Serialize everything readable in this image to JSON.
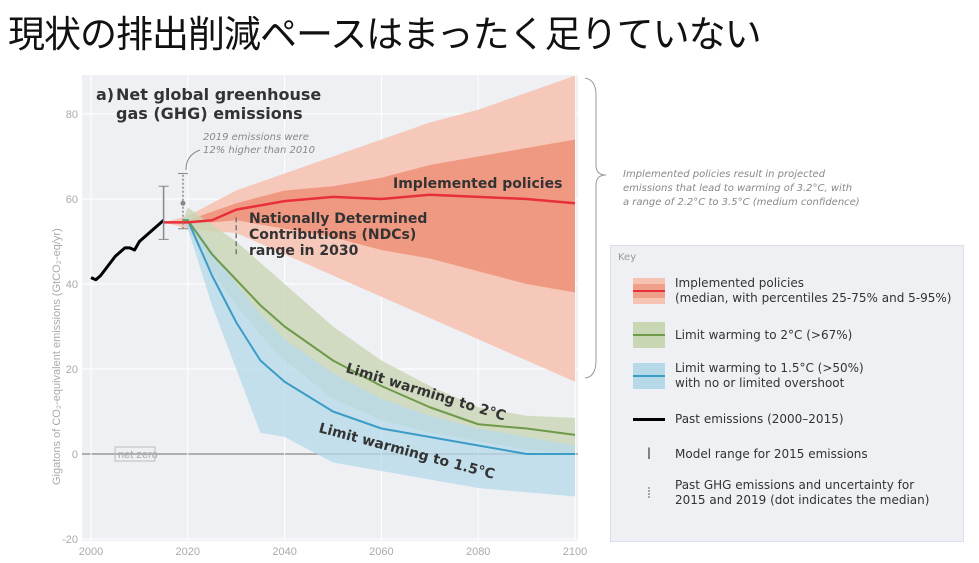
{
  "slide_title": "現状の排出削減ペースはまったく足りていない",
  "chart_data": {
    "type": "area",
    "panel_label": "a)",
    "title": "Net global greenhouse gas (GHG) emissions",
    "ylabel": "Gigatons of CO₂-equivalent emissions (GtCO₂-eq/yr)",
    "xlabel": "",
    "xlim": [
      2000,
      2100
    ],
    "ylim": [
      -20,
      90
    ],
    "xticks": [
      2000,
      2020,
      2040,
      2060,
      2080,
      2100
    ],
    "yticks": [
      -20,
      0,
      20,
      40,
      60,
      80
    ],
    "net_zero_label": "net zero",
    "colors": {
      "implemented": "#e8303a",
      "impl_outer": "#f6c3b3",
      "impl_inner": "#f0937c",
      "c2": "#6f9a4a",
      "c2_band": "#c9d6b4",
      "c15": "#3b9cc6",
      "c15_band": "#b6d9ea",
      "past": "#000000"
    },
    "series": [
      {
        "name": "Past emissions",
        "x": [
          2000,
          2001,
          2002,
          2003,
          2004,
          2005,
          2006,
          2007,
          2008,
          2009,
          2010,
          2011,
          2012,
          2013,
          2014,
          2015
        ],
        "y": [
          41.5,
          41,
          42,
          43.5,
          45,
          46.5,
          47.5,
          48.5,
          48.5,
          48,
          50,
          51,
          52,
          53,
          54,
          55
        ]
      },
      {
        "name": "Implemented policies",
        "x": [
          2015,
          2020,
          2025,
          2030,
          2040,
          2050,
          2060,
          2070,
          2080,
          2090,
          2100
        ],
        "y": [
          54.5,
          54.5,
          55,
          57.5,
          59.5,
          60.5,
          60,
          61,
          60.5,
          60,
          59
        ],
        "p5": [
          54.5,
          53,
          52.5,
          52,
          47,
          42,
          37,
          32,
          27,
          22,
          17
        ],
        "p95": [
          54.5,
          56,
          59,
          62,
          66,
          70,
          74,
          78,
          81,
          85,
          89
        ],
        "p25": [
          54.5,
          54,
          54.5,
          55,
          53,
          51,
          48,
          46,
          43,
          40,
          38
        ],
        "p75": [
          54.5,
          55,
          57,
          59,
          62,
          63,
          65,
          68,
          70,
          72,
          74
        ]
      },
      {
        "name": "Limit warming to 2°C",
        "x": [
          2019,
          2020,
          2025,
          2030,
          2035,
          2040,
          2050,
          2060,
          2070,
          2080,
          2090,
          2100
        ],
        "y": [
          55,
          55,
          47,
          41,
          35,
          30,
          22,
          16,
          11,
          7,
          6,
          4.5
        ],
        "lo": [
          55,
          53,
          43,
          35,
          28,
          22,
          13,
          8,
          5,
          3,
          1,
          0
        ],
        "hi": [
          55,
          58,
          54,
          50,
          45,
          40,
          30,
          22,
          16,
          11,
          9,
          8.5
        ]
      },
      {
        "name": "Limit warming to 1.5°C",
        "x": [
          2019,
          2020,
          2025,
          2030,
          2035,
          2040,
          2050,
          2060,
          2070,
          2080,
          2090,
          2100
        ],
        "y": [
          55,
          55,
          42,
          31,
          22,
          17,
          10,
          6,
          4,
          2,
          0,
          0
        ],
        "lo": [
          55,
          53,
          35,
          20,
          5,
          4,
          -2,
          -4,
          -6,
          -8,
          -9,
          -10
        ],
        "hi": [
          55,
          56,
          48,
          40,
          33,
          27,
          19,
          13,
          9,
          6,
          4,
          2
        ]
      }
    ],
    "error_bars": [
      {
        "name": "Model range for 2015 emissions",
        "x": 2015,
        "low": 50.5,
        "high": 63,
        "mid": 55
      },
      {
        "name": "Past GHG emissions 2019",
        "x": 2019,
        "low": 53,
        "high": 66,
        "median": 59
      },
      {
        "name": "NDC range 2030",
        "x": 2030,
        "low": 47,
        "high": 56
      }
    ],
    "annotations": {
      "note_2019": [
        "2019 emissions were",
        "12% higher than 2010"
      ],
      "ndc": [
        "Nationally Determined",
        "Contributions (NDCs)",
        "range in 2030"
      ],
      "implemented": "Implemented policies",
      "c2": "Limit warming to 2°C",
      "c15": "Limit warming to 1.5°C",
      "brace_note": [
        "Implemented policies result in projected",
        "emissions that lead to warming of 3.2°C, with",
        "a range of 2.2°C to 3.5°C (medium confidence)"
      ]
    },
    "legend": {
      "title": "Key",
      "items": [
        [
          "Implemented policies",
          "(median, with percentiles 25-75% and 5-95%)"
        ],
        [
          "Limit warming to 2°C (>67%)"
        ],
        [
          "Limit warming to 1.5°C (>50%)",
          "with no or limited overshoot"
        ],
        [
          "Past emissions (2000–2015)"
        ],
        [
          "Model range for 2015 emissions"
        ],
        [
          "Past GHG emissions and uncertainty for",
          "2015 and 2019 (dot indicates the median)"
        ]
      ]
    }
  }
}
